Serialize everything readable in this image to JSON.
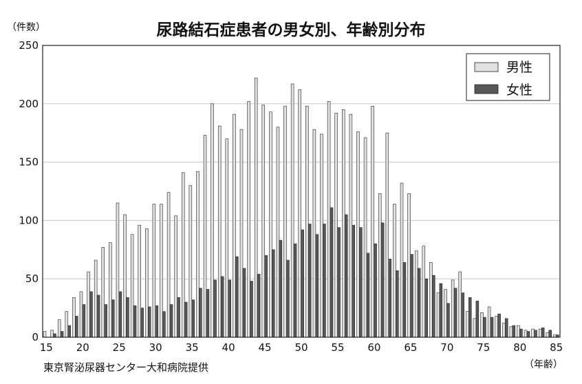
{
  "chart_data": {
    "type": "bar",
    "title": "尿路結石症患者の男女別、年齢別分布",
    "y_unit": "（件数）",
    "x_unit": "（年齢）",
    "source": "東京腎泌尿器センター大和病院提供",
    "ylim": [
      0,
      250
    ],
    "y_ticks": [
      0,
      50,
      100,
      150,
      200,
      250
    ],
    "x_ticks": [
      15,
      20,
      25,
      30,
      35,
      40,
      45,
      50,
      55,
      60,
      65,
      70,
      75,
      80,
      85
    ],
    "grid": "horizontal",
    "legend_position": "top-right",
    "x": [
      15,
      16,
      17,
      18,
      19,
      20,
      21,
      22,
      23,
      24,
      25,
      26,
      27,
      28,
      29,
      30,
      31,
      32,
      33,
      34,
      35,
      36,
      37,
      38,
      39,
      40,
      41,
      42,
      43,
      44,
      45,
      46,
      47,
      48,
      49,
      50,
      51,
      52,
      53,
      54,
      55,
      56,
      57,
      58,
      59,
      60,
      61,
      62,
      63,
      64,
      65,
      66,
      67,
      68,
      69,
      70,
      71,
      72,
      73,
      74,
      75,
      76,
      77,
      78,
      79,
      80,
      81,
      82,
      83,
      84,
      85
    ],
    "series": [
      {
        "name": "男性",
        "color": "#e0e0e0",
        "values": [
          5,
          6,
          15,
          22,
          34,
          39,
          56,
          66,
          77,
          81,
          115,
          105,
          88,
          96,
          93,
          114,
          114,
          124,
          104,
          141,
          130,
          142,
          173,
          200,
          181,
          170,
          191,
          178,
          202,
          222,
          199,
          193,
          180,
          198,
          217,
          212,
          198,
          178,
          174,
          202,
          192,
          195,
          191,
          176,
          171,
          198,
          123,
          175,
          114,
          132,
          123,
          74,
          78,
          64,
          38,
          41,
          49,
          56,
          22,
          16,
          21,
          26,
          18,
          12,
          9,
          10,
          6,
          7,
          7,
          4,
          2
        ]
      },
      {
        "name": "女性",
        "color": "#585858",
        "values": [
          0,
          3,
          5,
          10,
          18,
          28,
          39,
          36,
          28,
          32,
          39,
          34,
          27,
          25,
          26,
          27,
          22,
          28,
          34,
          30,
          32,
          42,
          41,
          49,
          52,
          49,
          69,
          59,
          48,
          54,
          70,
          75,
          83,
          66,
          80,
          92,
          97,
          88,
          97,
          111,
          94,
          105,
          96,
          94,
          72,
          80,
          98,
          67,
          57,
          64,
          71,
          59,
          50,
          53,
          46,
          29,
          42,
          38,
          34,
          31,
          17,
          17,
          20,
          16,
          10,
          7,
          5,
          6,
          8,
          6,
          2
        ]
      }
    ]
  }
}
